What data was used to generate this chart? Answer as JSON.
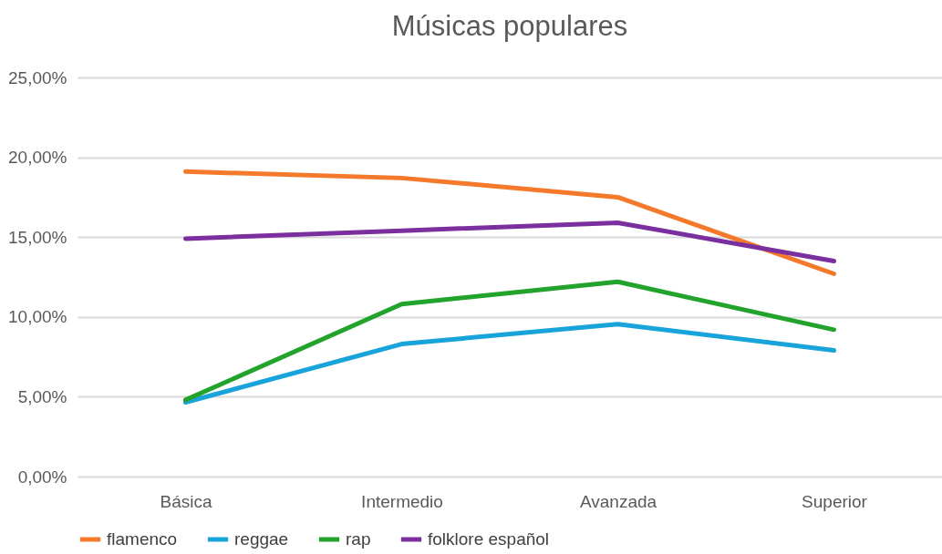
{
  "chart_data": {
    "type": "line",
    "title": "Músicas populares",
    "categories": [
      "Básica",
      "Intermedio",
      "Avanzada",
      "Superior"
    ],
    "series": [
      {
        "name": "flamenco",
        "color": "#f4792b",
        "values": [
          19.1,
          18.7,
          17.5,
          12.7
        ]
      },
      {
        "name": "reggae",
        "color": "#18a3da",
        "values": [
          4.65,
          8.3,
          9.55,
          7.9
        ]
      },
      {
        "name": "rap",
        "color": "#22a32c",
        "values": [
          4.8,
          10.8,
          12.2,
          9.2
        ]
      },
      {
        "name": "folklore español",
        "color": "#7b2f9e",
        "values": [
          14.9,
          15.4,
          15.9,
          13.5
        ]
      }
    ],
    "ylim": [
      0,
      25
    ],
    "yticks": [
      {
        "value": 0,
        "label": "0,00%"
      },
      {
        "value": 5,
        "label": "5,00%"
      },
      {
        "value": 10,
        "label": "10,00%"
      },
      {
        "value": 15,
        "label": "15,00%"
      },
      {
        "value": 20,
        "label": "20,00%"
      },
      {
        "value": 25,
        "label": "25,00%"
      }
    ],
    "grid": "y",
    "legend": "bottom",
    "marker": "none",
    "line_style": "solid"
  }
}
